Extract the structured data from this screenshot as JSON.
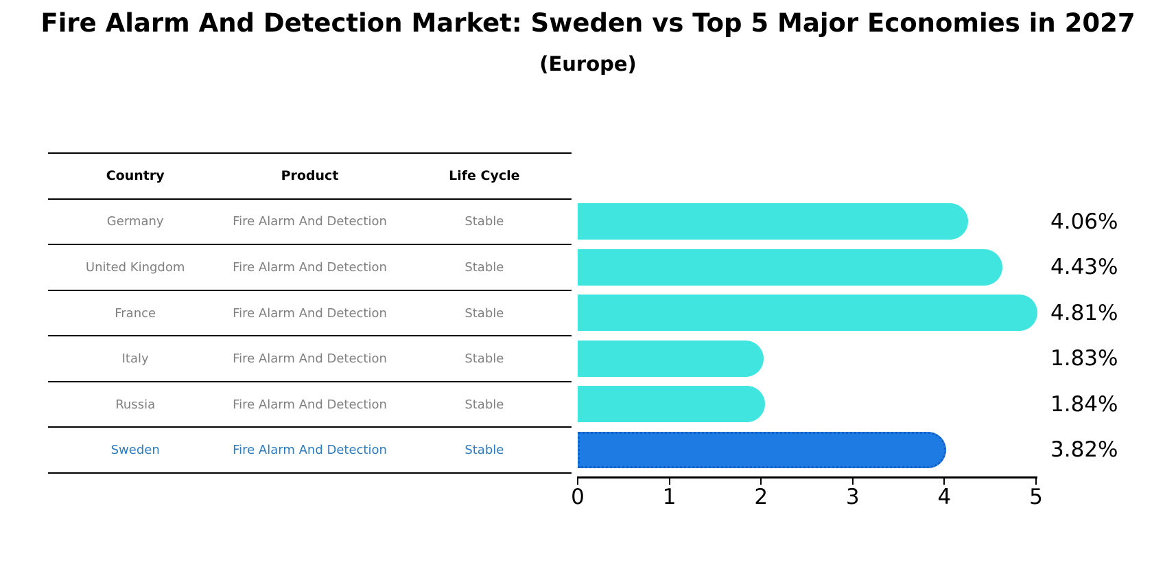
{
  "title": "Fire Alarm And Detection Market: Sweden vs Top 5 Major Economies in 2027",
  "subtitle": "(Europe)",
  "table": {
    "headers": [
      "Country",
      "Product",
      "Life Cycle"
    ],
    "rows": [
      {
        "country": "Germany",
        "product": "Fire Alarm And Detection",
        "life_cycle": "Stable",
        "highlighted": false
      },
      {
        "country": "United Kingdom",
        "product": "Fire Alarm And Detection",
        "life_cycle": "Stable",
        "highlighted": false
      },
      {
        "country": "France",
        "product": "Fire Alarm And Detection",
        "life_cycle": "Stable",
        "highlighted": false
      },
      {
        "country": "Italy",
        "product": "Fire Alarm And Detection",
        "life_cycle": "Stable",
        "highlighted": false
      },
      {
        "country": "Russia",
        "product": "Fire Alarm And Detection",
        "life_cycle": "Stable",
        "highlighted": false
      },
      {
        "country": "Sweden",
        "product": "Fire Alarm And Detection",
        "life_cycle": "Stable",
        "highlighted": true
      }
    ]
  },
  "chart_data": {
    "type": "bar",
    "orientation": "horizontal",
    "title": "Fire Alarm And Detection Market: Sweden vs Top 5 Major Economies in 2027",
    "subtitle": "(Europe)",
    "categories": [
      "Germany",
      "United Kingdom",
      "France",
      "Italy",
      "Russia",
      "Sweden"
    ],
    "values": [
      4.06,
      4.43,
      4.81,
      1.83,
      1.84,
      3.82
    ],
    "value_labels": [
      "4.06%",
      "4.43%",
      "4.81%",
      "1.83%",
      "1.84%",
      "3.82%"
    ],
    "unit": "%",
    "highlight_index": 5,
    "xlim": [
      0,
      5
    ],
    "xticks": [
      "0",
      "1",
      "2",
      "3",
      "4",
      "5"
    ],
    "grid": false,
    "legend": false
  },
  "colors": {
    "bar": "#41e5e0",
    "highlight_bar": "#1f7be4",
    "highlight_border": "#135fc4",
    "row_text": "#7f7f7f",
    "highlight_text": "#2d7bbf",
    "header_text": "#000000",
    "axis": "#000000",
    "background": "#ffffff"
  }
}
